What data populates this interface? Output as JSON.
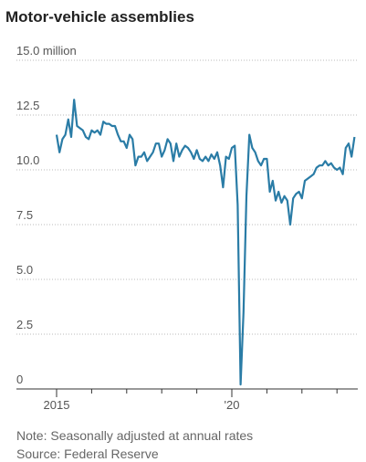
{
  "chart_data": {
    "type": "line",
    "title": "Motor-vehicle assemblies",
    "note": "Note: Seasonally adjusted at annual rates",
    "source": "Source: Federal Reserve",
    "categories": [
      "2015",
      null,
      null,
      null,
      null,
      null,
      null,
      null,
      null,
      null,
      null,
      null,
      null,
      null,
      null,
      null,
      null,
      null,
      null,
      null,
      null,
      null,
      null,
      null,
      null,
      null,
      null,
      null,
      null,
      null,
      null,
      null,
      null,
      null,
      null,
      null,
      null,
      null,
      null,
      null,
      null,
      null,
      null,
      null,
      null,
      null,
      null,
      null,
      null,
      null,
      null,
      null,
      null,
      null,
      null,
      null,
      null,
      null,
      null,
      null,
      "'20",
      null,
      null,
      null,
      null,
      null,
      null,
      null,
      null,
      null,
      null,
      null,
      null,
      null,
      null,
      null,
      null,
      null,
      null,
      null,
      null,
      null,
      null,
      null,
      null,
      null,
      null,
      null,
      null,
      null,
      null,
      null,
      null,
      null,
      null,
      null,
      null,
      null,
      null,
      null,
      null,
      null,
      null
    ],
    "series": [
      {
        "name": "Motor-vehicle assemblies",
        "color": "#2a7ca6",
        "values": [
          11.6,
          10.8,
          11.4,
          11.6,
          12.3,
          11.5,
          13.2,
          12.0,
          11.9,
          11.8,
          11.5,
          11.4,
          11.8,
          11.7,
          11.8,
          11.6,
          12.2,
          12.1,
          12.1,
          12.0,
          12.0,
          11.6,
          11.3,
          11.3,
          11.0,
          11.6,
          11.4,
          10.2,
          10.6,
          10.6,
          10.8,
          10.4,
          10.6,
          10.8,
          11.2,
          11.2,
          10.6,
          10.9,
          11.4,
          11.2,
          10.4,
          11.2,
          10.6,
          10.9,
          11.1,
          11.0,
          10.8,
          10.5,
          10.9,
          10.5,
          10.4,
          10.6,
          10.4,
          10.7,
          10.5,
          10.8,
          10.2,
          9.2,
          10.6,
          10.5,
          11.0,
          11.1,
          8.4,
          0.2,
          3.5,
          8.8,
          11.6,
          11.0,
          10.8,
          10.4,
          10.2,
          10.5,
          10.5,
          9.0,
          9.5,
          8.6,
          9.0,
          8.5,
          8.8,
          8.6,
          7.5,
          8.7,
          8.9,
          9.0,
          8.7,
          9.5,
          9.6,
          9.7,
          9.8,
          10.1,
          10.2,
          10.2,
          10.4,
          10.2,
          10.3,
          10.1,
          10.0,
          10.1,
          9.8,
          11.0,
          11.2,
          10.6,
          11.5
        ]
      }
    ],
    "ylim": [
      0,
      15
    ],
    "yticks": [
      0,
      2.5,
      {
        "value": 5,
        "label": "5.0"
      },
      {
        "value": 7.5,
        "label": "7.5"
      },
      {
        "value": 10,
        "label": "10.0"
      },
      {
        "value": 12.5,
        "label": "12.5"
      },
      {
        "value": 15,
        "label": "15.0 million"
      }
    ],
    "grid": true
  }
}
